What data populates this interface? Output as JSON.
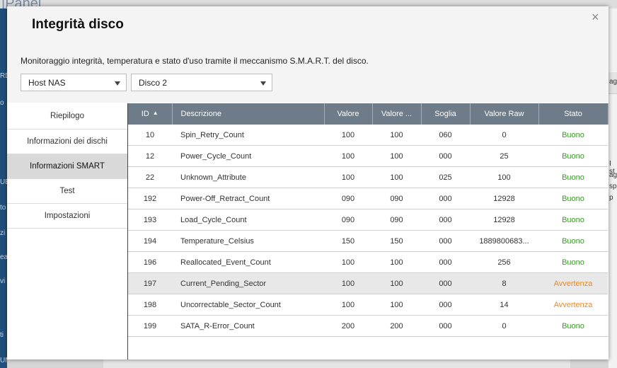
{
  "background": {
    "app_title_fragment": "|Panel",
    "left_fragments": [
      "RD",
      "o",
      "UE",
      "to",
      "zi",
      "ea",
      "vi",
      "ti",
      "UN"
    ],
    "right_fragments": [
      "ag",
      "I st",
      "agr",
      "sp",
      "p"
    ]
  },
  "dialog": {
    "title": "Integrità disco",
    "close_label": "×",
    "description": "Monitoraggio integrità, temperatura e stato d'uso tramite il meccanismo S.M.A.R.T. del disco.",
    "host_select": "Host NAS",
    "disk_select": "Disco 2"
  },
  "nav": {
    "items": [
      {
        "label": "Riepilogo"
      },
      {
        "label": "Informazioni dei dischi"
      },
      {
        "label": "Informazioni SMART"
      },
      {
        "label": "Test"
      },
      {
        "label": "Impostazioni"
      }
    ],
    "active_index": 2
  },
  "table": {
    "columns": [
      "ID",
      "Descrizione",
      "Valore",
      "Valore ...",
      "Soglia",
      "Valore Raw",
      "Stato"
    ],
    "sort_indicator": "▲",
    "rows": [
      {
        "id": "10",
        "desc": "Spin_Retry_Count",
        "value": "100",
        "worst": "100",
        "threshold": "060",
        "raw": "0",
        "status": "Buono"
      },
      {
        "id": "12",
        "desc": "Power_Cycle_Count",
        "value": "100",
        "worst": "100",
        "threshold": "000",
        "raw": "25",
        "status": "Buono"
      },
      {
        "id": "22",
        "desc": "Unknown_Attribute",
        "value": "100",
        "worst": "100",
        "threshold": "025",
        "raw": "100",
        "status": "Buono"
      },
      {
        "id": "192",
        "desc": "Power-Off_Retract_Count",
        "value": "090",
        "worst": "090",
        "threshold": "000",
        "raw": "12928",
        "status": "Buono"
      },
      {
        "id": "193",
        "desc": "Load_Cycle_Count",
        "value": "090",
        "worst": "090",
        "threshold": "000",
        "raw": "12928",
        "status": "Buono"
      },
      {
        "id": "194",
        "desc": "Temperature_Celsius",
        "value": "150",
        "worst": "150",
        "threshold": "000",
        "raw": "1889800683...",
        "status": "Buono"
      },
      {
        "id": "196",
        "desc": "Reallocated_Event_Count",
        "value": "100",
        "worst": "100",
        "threshold": "000",
        "raw": "256",
        "status": "Buono"
      },
      {
        "id": "197",
        "desc": "Current_Pending_Sector",
        "value": "100",
        "worst": "100",
        "threshold": "000",
        "raw": "8",
        "status": "Avvertenza"
      },
      {
        "id": "198",
        "desc": "Uncorrectable_Sector_Count",
        "value": "100",
        "worst": "100",
        "threshold": "000",
        "raw": "14",
        "status": "Avvertenza"
      },
      {
        "id": "199",
        "desc": "SATA_R-Error_Count",
        "value": "200",
        "worst": "200",
        "threshold": "000",
        "raw": "0",
        "status": "Buono"
      }
    ],
    "highlighted_row": 7
  },
  "colors": {
    "header_bg": "#6e7b88",
    "status_good": "#3a9a2a",
    "status_warn": "#e8892a",
    "active_nav": "#d9d9d9"
  }
}
